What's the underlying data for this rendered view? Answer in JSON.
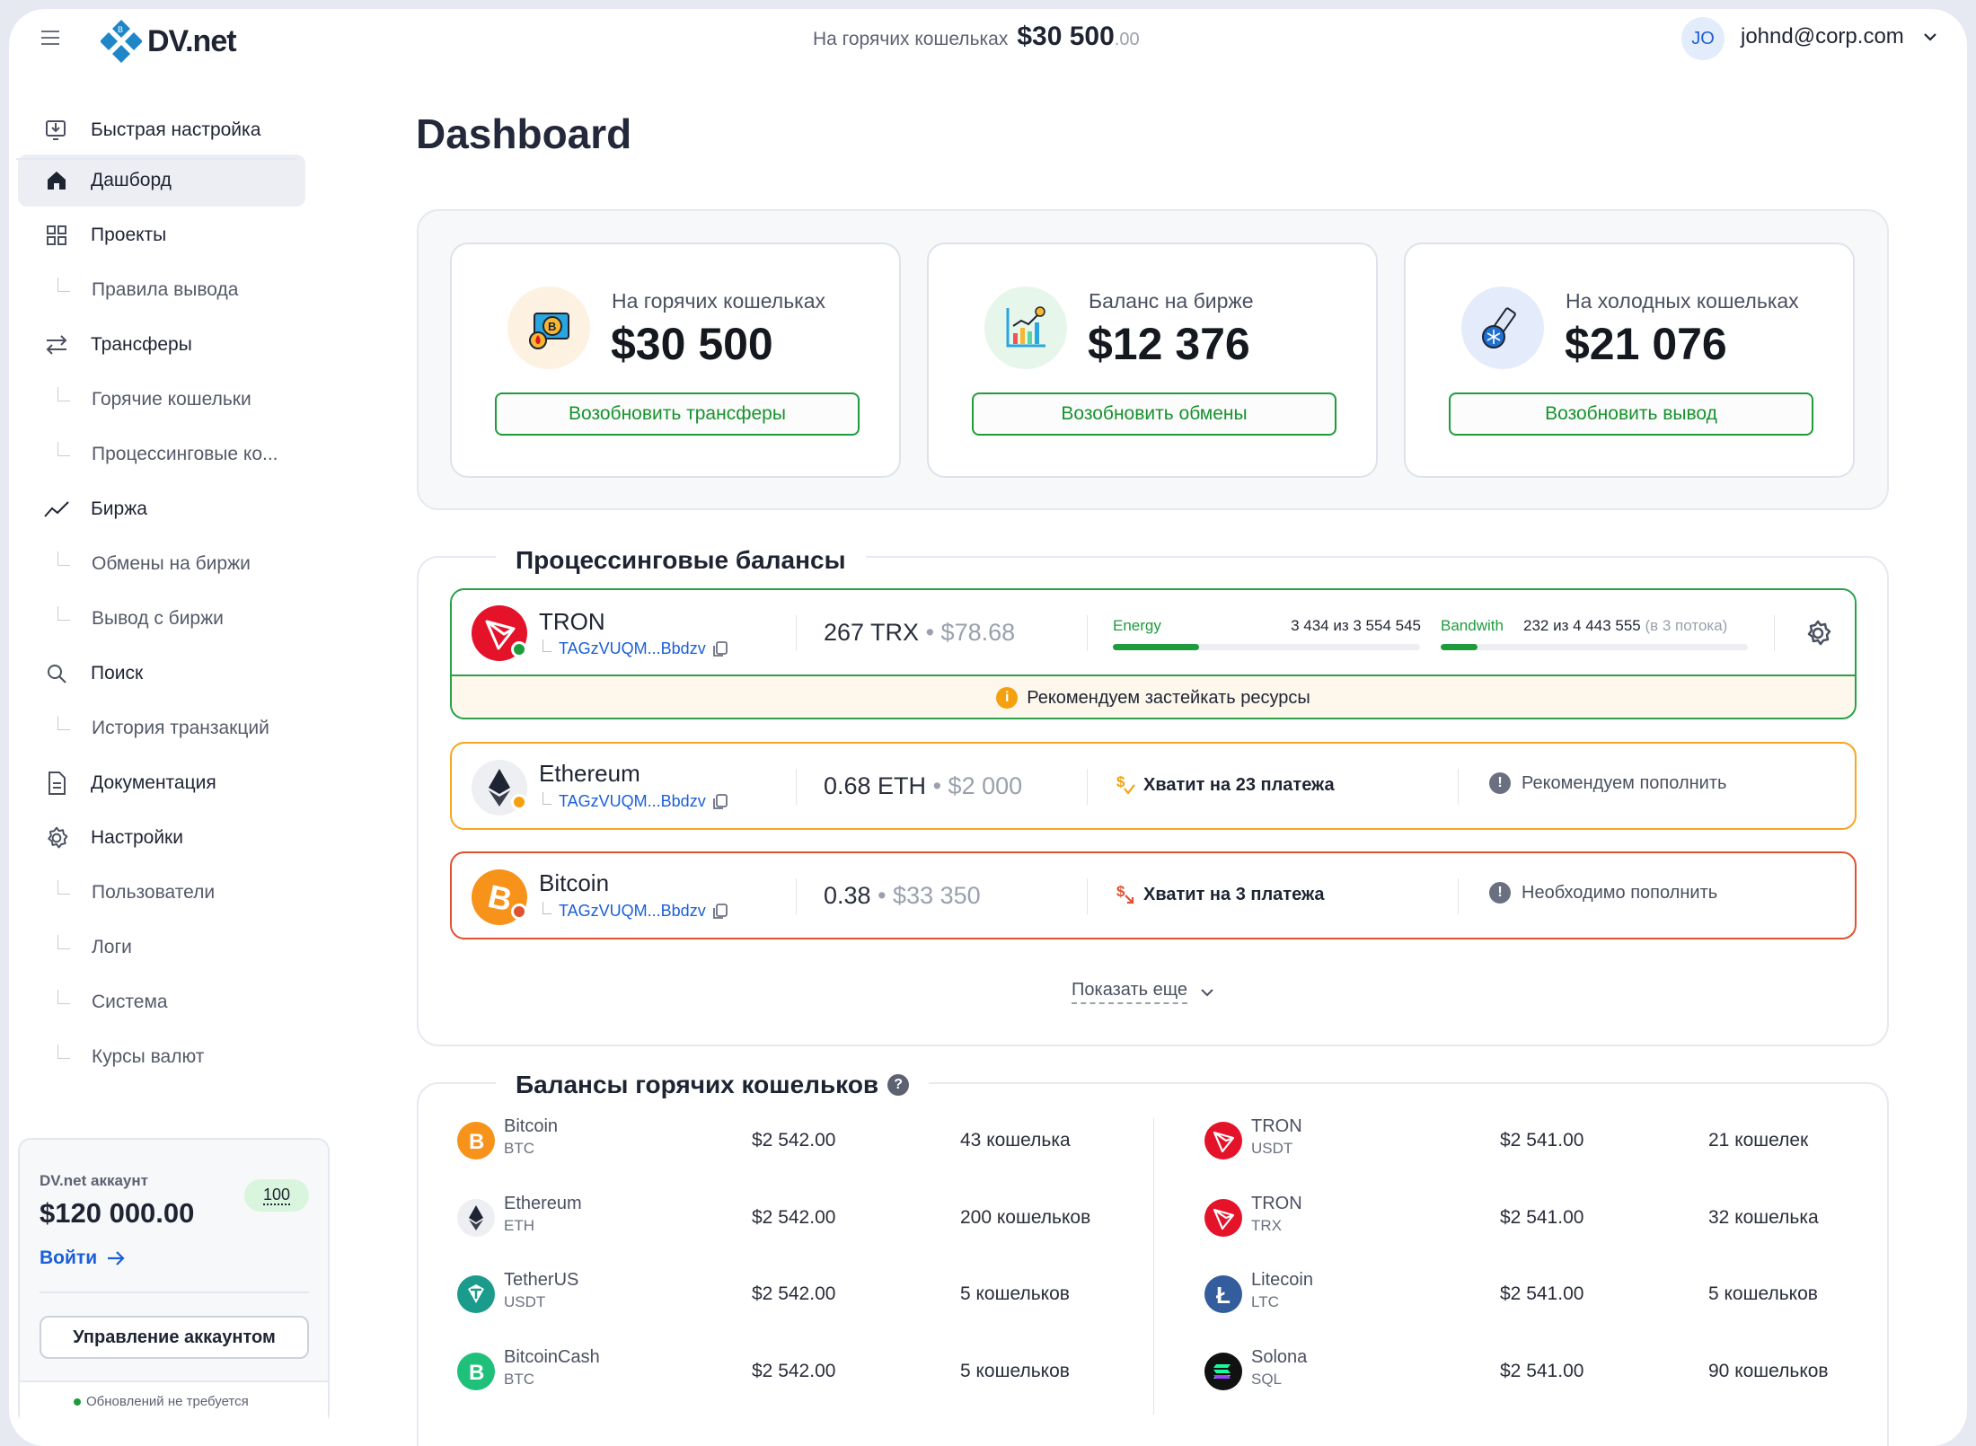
{
  "header": {
    "logo_text": "DV.net",
    "hot_label": "На горячих кошельках",
    "hot_total": "$30 500",
    "hot_cents": ".00",
    "avatar_initials": "JO",
    "user_email": "johnd@corp.com"
  },
  "sidebar": {
    "items": [
      {
        "label": "Быстрая настройка",
        "icon": "monitor-download-icon"
      },
      {
        "label": "Дашборд",
        "icon": "home-icon",
        "active": true
      },
      {
        "label": "Проекты",
        "icon": "grid-icon"
      },
      {
        "label": "Правила вывода",
        "sub": true
      },
      {
        "label": "Трансферы",
        "icon": "arrows-swap-icon"
      },
      {
        "label": "Горячие кошельки",
        "sub": true
      },
      {
        "label": "Процессинговые ко...",
        "sub": true
      },
      {
        "label": "Биржа",
        "icon": "chart-line-icon"
      },
      {
        "label": "Обмены на биржи",
        "sub": true
      },
      {
        "label": "Вывод с биржи",
        "sub": true
      },
      {
        "label": "Поиск",
        "icon": "search-icon"
      },
      {
        "label": "История транзакций",
        "sub": true
      },
      {
        "label": "Документация",
        "icon": "document-icon"
      },
      {
        "label": "Настройки",
        "icon": "gear-icon"
      },
      {
        "label": "Пользователи",
        "sub": true
      },
      {
        "label": "Логи",
        "sub": true
      },
      {
        "label": "Система",
        "sub": true
      },
      {
        "label": "Курсы валют",
        "sub": true
      }
    ],
    "account": {
      "title": "DV.net аккаунт",
      "balance": "$120 000.00",
      "badge": "100",
      "login_label": "Войти",
      "manage_label": "Управление аккаунтом",
      "status": "Обновлений не требуется"
    }
  },
  "main": {
    "title": "Dashboard",
    "cards": [
      {
        "label": "На горячих кошельках",
        "amount": "$30 500",
        "button": "Возобновить трансферы",
        "icon": "hot-wallet-icon",
        "circle": "#fdf1e1"
      },
      {
        "label": "Баланс на бирже",
        "amount": "$12 376",
        "button": "Возобновить обмены",
        "icon": "exchange-chart-icon",
        "circle": "#e6f6ea"
      },
      {
        "label": "На холодных кошельках",
        "amount": "$21 076",
        "button": "Возобновить вывод",
        "icon": "cold-wallet-icon",
        "circle": "#e4ecfb"
      }
    ],
    "processing": {
      "title": "Процессинговые балансы",
      "tron": {
        "name": "TRON",
        "address": "TAGzVUQM...Bbdzv",
        "amount": "267 TRX",
        "usd": "$78.68",
        "energy_label": "Energy",
        "energy_value": "3 434 из 3 554 545",
        "energy_fill": 0.28,
        "bandwidth_label": "Bandwith",
        "bandwidth_value": "232 из 4 443 555",
        "bandwidth_note": "(в 3 потока)",
        "bandwidth_fill": 0.12,
        "warning": "Рекомендуем застейкать ресурсы",
        "status_color": "#1e9c3c"
      },
      "ethereum": {
        "name": "Ethereum",
        "address": "TAGzVUQM...Bbdzv",
        "amount": "0.68 ETH",
        "usd": "$2 000",
        "payments": "Хватит на 23 платежа",
        "advice": "Рекомендуем пополнить",
        "status_color": "#f5a00f"
      },
      "bitcoin": {
        "name": "Bitcoin",
        "address": "TAGzVUQM...Bbdzv",
        "amount": "0.38",
        "usd": "$33 350",
        "payments": "Хватит на 3 платежа",
        "advice": "Необходимо пополнить",
        "status_color": "#e0522f"
      },
      "show_more": "Показать еще"
    },
    "hot_balances": {
      "title": "Балансы горячих кошельков",
      "left": [
        {
          "name": "Bitcoin",
          "symbol": "BTC",
          "amount": "$2 542.00",
          "count": "43 кошелька",
          "icon": "btc"
        },
        {
          "name": "Ethereum",
          "symbol": "ETH",
          "amount": "$2 542.00",
          "count": "200 кошельков",
          "icon": "eth"
        },
        {
          "name": "TetherUS",
          "symbol": "USDT",
          "amount": "$2 542.00",
          "count": "5 кошельков",
          "icon": "usdt"
        },
        {
          "name": "BitcoinCash",
          "symbol": "BTC",
          "amount": "$2 542.00",
          "count": "5 кошельков",
          "icon": "bch"
        }
      ],
      "right": [
        {
          "name": "TRON",
          "symbol": "USDT",
          "amount": "$2 541.00",
          "count": "21 кошелек",
          "icon": "trx"
        },
        {
          "name": "TRON",
          "symbol": "TRX",
          "amount": "$2 541.00",
          "count": "32 кошелька",
          "icon": "trx"
        },
        {
          "name": "Litecoin",
          "symbol": "LTC",
          "amount": "$2 541.00",
          "count": "5 кошельков",
          "icon": "ltc"
        },
        {
          "name": "Solona",
          "symbol": "SQL",
          "amount": "$2 541.00",
          "count": "90 кошельков",
          "icon": "sol"
        }
      ]
    }
  },
  "colors": {
    "accent_green": "#1e9c3c",
    "link_blue": "#1a5fd8",
    "warning_orange": "#f5a00f",
    "danger_red": "#e0522f",
    "tron_red": "#e5132a"
  }
}
